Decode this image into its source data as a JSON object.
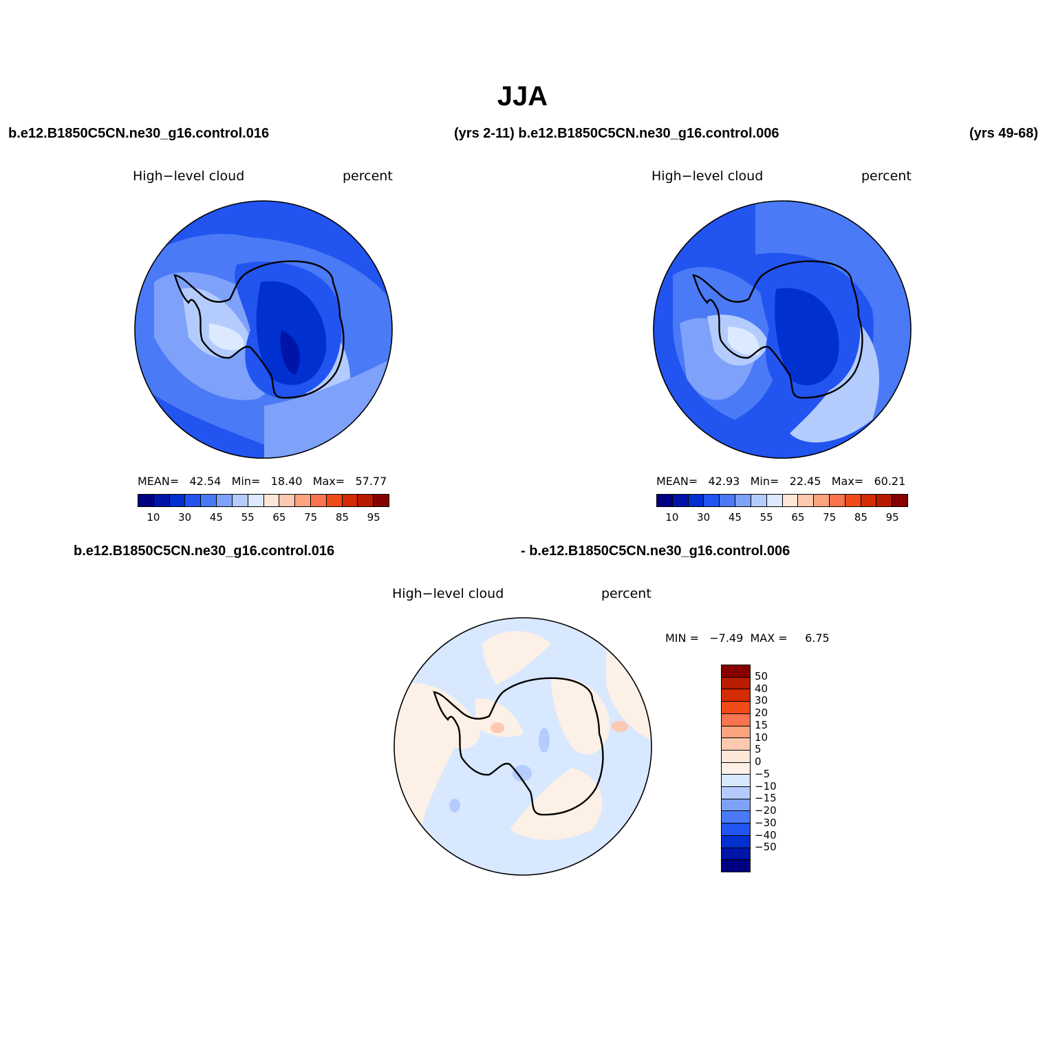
{
  "title": "JJA",
  "header_left": "b.e12.B1850C5CN.ne30_g16.control.016",
  "header_mid": "(yrs 2-11) b.e12.B1850C5CN.ne30_g16.control.006",
  "header_right": "(yrs 49-68)",
  "panel1": {
    "var_label": "High−level cloud",
    "units": "percent",
    "mean_label": "MEAN=",
    "mean": "42.54",
    "min_label": "Min=",
    "min": "18.40",
    "max_label": "Max=",
    "max": "57.77"
  },
  "panel2": {
    "var_label": "High−level cloud",
    "units": "percent",
    "mean_label": "MEAN=",
    "mean": "42.93",
    "min_label": "Min=",
    "min": "22.45",
    "max_label": "Max=",
    "max": "60.21"
  },
  "diff_header_left": "b.e12.B1850C5CN.ne30_g16.control.016",
  "diff_header_right": "- b.e12.B1850C5CN.ne30_g16.control.006",
  "panel3": {
    "var_label": "High−level cloud",
    "units": "percent",
    "minmax_text": "MIN =   −7.49  MAX =     6.75"
  },
  "colorbar_abs": {
    "colors": [
      "#000080",
      "#0015a8",
      "#0030d0",
      "#2254f0",
      "#4a7af6",
      "#7ea2fa",
      "#b4ccfd",
      "#dce9ff",
      "#fee7d8",
      "#fdc9b0",
      "#fca480",
      "#fa7450",
      "#f04b18",
      "#d52c05",
      "#b81b00",
      "#870000"
    ],
    "tick_labels": [
      "10",
      "30",
      "45",
      "55",
      "65",
      "75",
      "85",
      "95"
    ]
  },
  "colorbar_diff": {
    "colors": [
      "#870000",
      "#b81b00",
      "#d52c05",
      "#f04b18",
      "#fa7450",
      "#fca480",
      "#fdc9b0",
      "#fee7d8",
      "#fdf0e6",
      "#d8e8fe",
      "#b4ccfd",
      "#7ea2fa",
      "#4a7af6",
      "#2254f0",
      "#0030d0",
      "#0015a8",
      "#000080"
    ],
    "tick_labels": [
      "50",
      "40",
      "30",
      "20",
      "15",
      "10",
      "5",
      "0",
      "−5",
      "−10",
      "−15",
      "−20",
      "−30",
      "−40",
      "−50"
    ]
  }
}
